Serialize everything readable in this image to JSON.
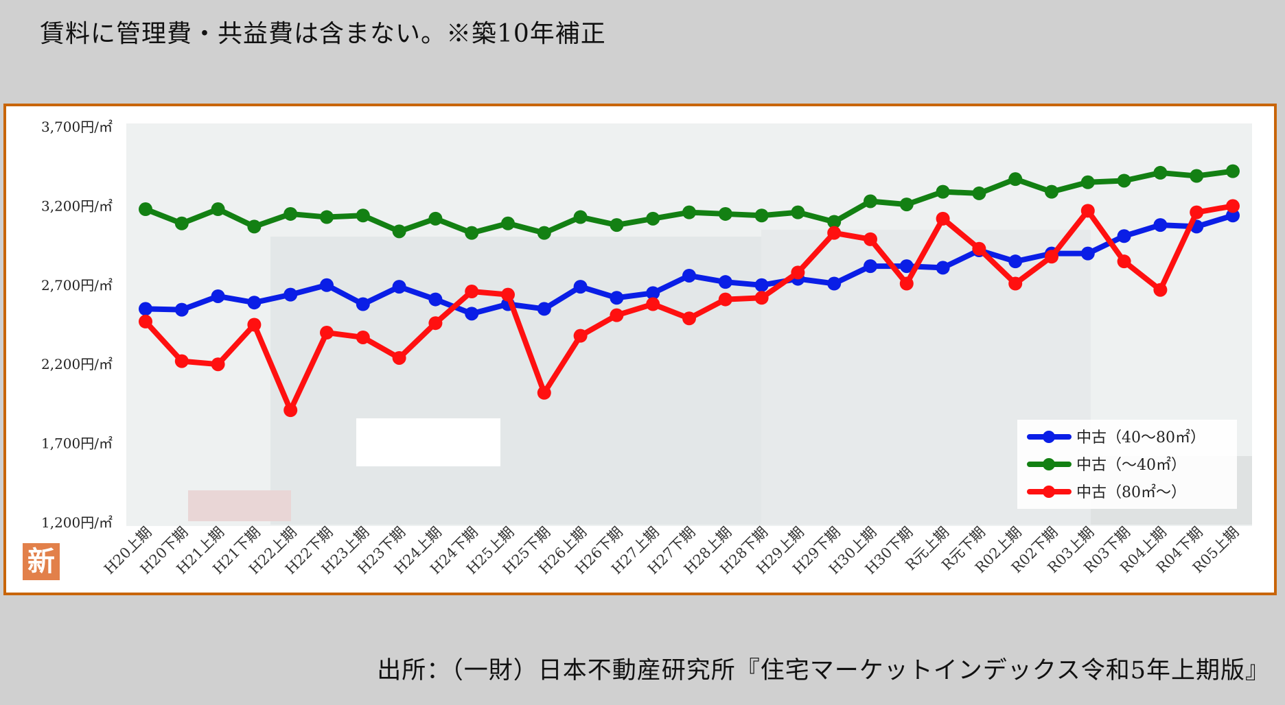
{
  "header": {
    "note": "賃料に管理費・共益費は含まない。※築10年補正"
  },
  "footer": {
    "source": "出所：（一財）日本不動産研究所『住宅マーケットインデックス令和5年上期版』"
  },
  "badge": {
    "label": "新"
  },
  "colors": {
    "frame": "#c8650a",
    "blue": "#0a1ee6",
    "green": "#138013",
    "red": "#ff1010"
  },
  "chart_data": {
    "type": "line",
    "title": "",
    "xlabel": "",
    "ylabel": "",
    "ylim": [
      1200,
      3700
    ],
    "yticks": [
      "1,200円/㎡",
      "1,700円/㎡",
      "2,200円/㎡",
      "2,700円/㎡",
      "3,200円/㎡",
      "3,700円/㎡"
    ],
    "ytick_values": [
      1200,
      1700,
      2200,
      2700,
      3200,
      3700
    ],
    "grid": false,
    "legend_position": "bottom-right",
    "categories": [
      "H20上期",
      "H20下期",
      "H21上期",
      "H21下期",
      "H22上期",
      "H22下期",
      "H23上期",
      "H23下期",
      "H24上期",
      "H24下期",
      "H25上期",
      "H25下期",
      "H26上期",
      "H26下期",
      "H27上期",
      "H27下期",
      "H28上期",
      "H28下期",
      "H29上期",
      "H29下期",
      "H30上期",
      "H30下期",
      "R元上期",
      "R元下期",
      "R02上期",
      "R02下期",
      "R03上期",
      "R03下期",
      "R04上期",
      "R04下期",
      "R05上期"
    ],
    "series": [
      {
        "name": "中古（40～80㎡）",
        "color": "#0a1ee6",
        "values": [
          2550,
          2545,
          2630,
          2590,
          2640,
          2700,
          2580,
          2690,
          2610,
          2520,
          2580,
          2550,
          2690,
          2620,
          2650,
          2760,
          2720,
          2700,
          2740,
          2710,
          2820,
          2820,
          2810,
          2920,
          2850,
          2900,
          2900,
          3010,
          3080,
          3070,
          3140
        ]
      },
      {
        "name": "中古（～40㎡）",
        "color": "#138013",
        "values": [
          3180,
          3090,
          3180,
          3070,
          3150,
          3130,
          3140,
          3040,
          3120,
          3030,
          3090,
          3030,
          3130,
          3080,
          3120,
          3160,
          3150,
          3140,
          3160,
          3100,
          3230,
          3210,
          3290,
          3280,
          3370,
          3290,
          3350,
          3360,
          3410,
          3390,
          3420
        ]
      },
      {
        "name": "中古（80㎡～）",
        "color": "#ff1010",
        "values": [
          2470,
          2220,
          2200,
          2450,
          1910,
          2400,
          2370,
          2240,
          2460,
          2660,
          2640,
          2020,
          2380,
          2510,
          2580,
          2490,
          2610,
          2620,
          2780,
          3030,
          2990,
          2710,
          3120,
          2930,
          2710,
          2880,
          3170,
          2850,
          2670,
          3160,
          3200
        ]
      }
    ]
  }
}
